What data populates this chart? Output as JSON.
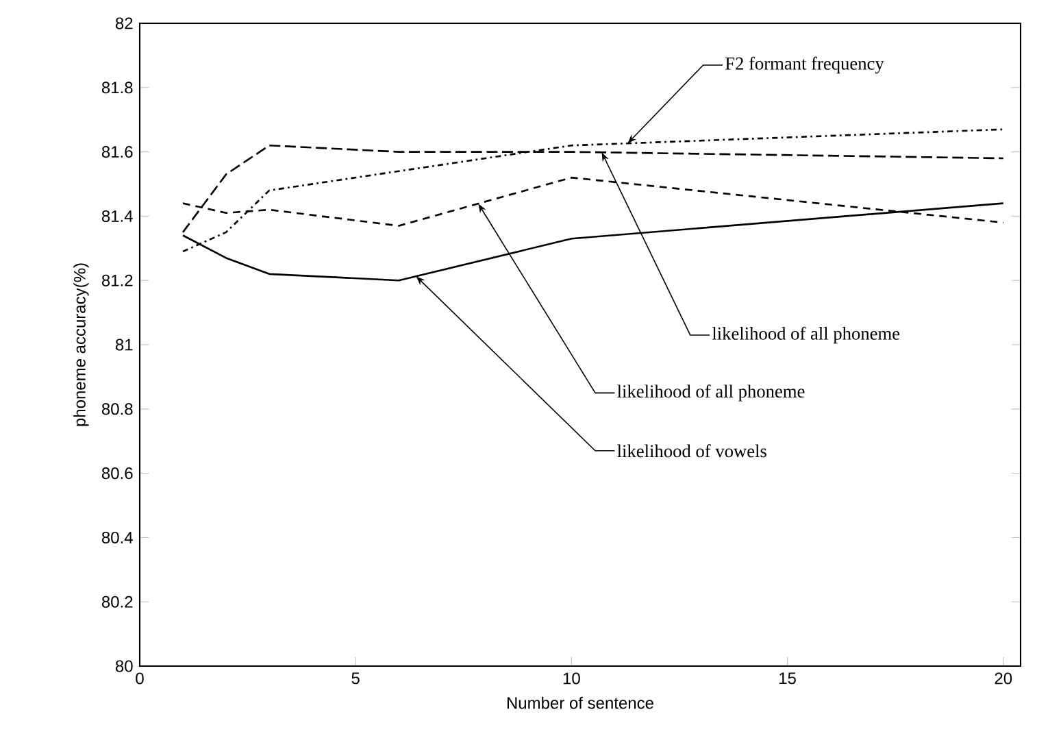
{
  "chart_data": {
    "type": "line",
    "xlabel": "Number of sentence",
    "ylabel": "phoneme accuracy(%)",
    "xlim": [
      0,
      20.4
    ],
    "ylim": [
      80,
      82
    ],
    "xticks": [
      0,
      5,
      10,
      15,
      20
    ],
    "yticks": [
      80,
      80.2,
      80.4,
      80.6,
      80.8,
      81,
      81.2,
      81.4,
      81.6,
      81.8,
      82
    ],
    "grid": false,
    "legend": false,
    "marker": "none",
    "series": [
      {
        "name": "F2 formant frequency",
        "color": "#000000",
        "line_style": "dashdotted",
        "x": [
          1,
          2,
          3,
          6,
          10,
          20
        ],
        "values": [
          81.29,
          81.35,
          81.48,
          81.54,
          81.62,
          81.67
        ]
      },
      {
        "name": "likelihood of all phoneme",
        "color": "#000000",
        "line_style": "dashed",
        "x": [
          1,
          2,
          3,
          6,
          10,
          20
        ],
        "values": [
          81.35,
          81.53,
          81.62,
          81.6,
          81.6,
          81.58
        ]
      },
      {
        "name": "likelihood of all phoneme",
        "color": "#000000",
        "line_style": "dashed",
        "x": [
          1,
          2,
          3,
          6,
          10,
          20
        ],
        "values": [
          81.44,
          81.41,
          81.42,
          81.37,
          81.52,
          81.38
        ]
      },
      {
        "name": "likelihood of vowels",
        "color": "#000000",
        "line_style": "solid",
        "x": [
          1,
          2,
          3,
          6,
          10,
          20
        ],
        "values": [
          81.34,
          81.27,
          81.22,
          81.2,
          81.33,
          81.44
        ]
      }
    ]
  }
}
